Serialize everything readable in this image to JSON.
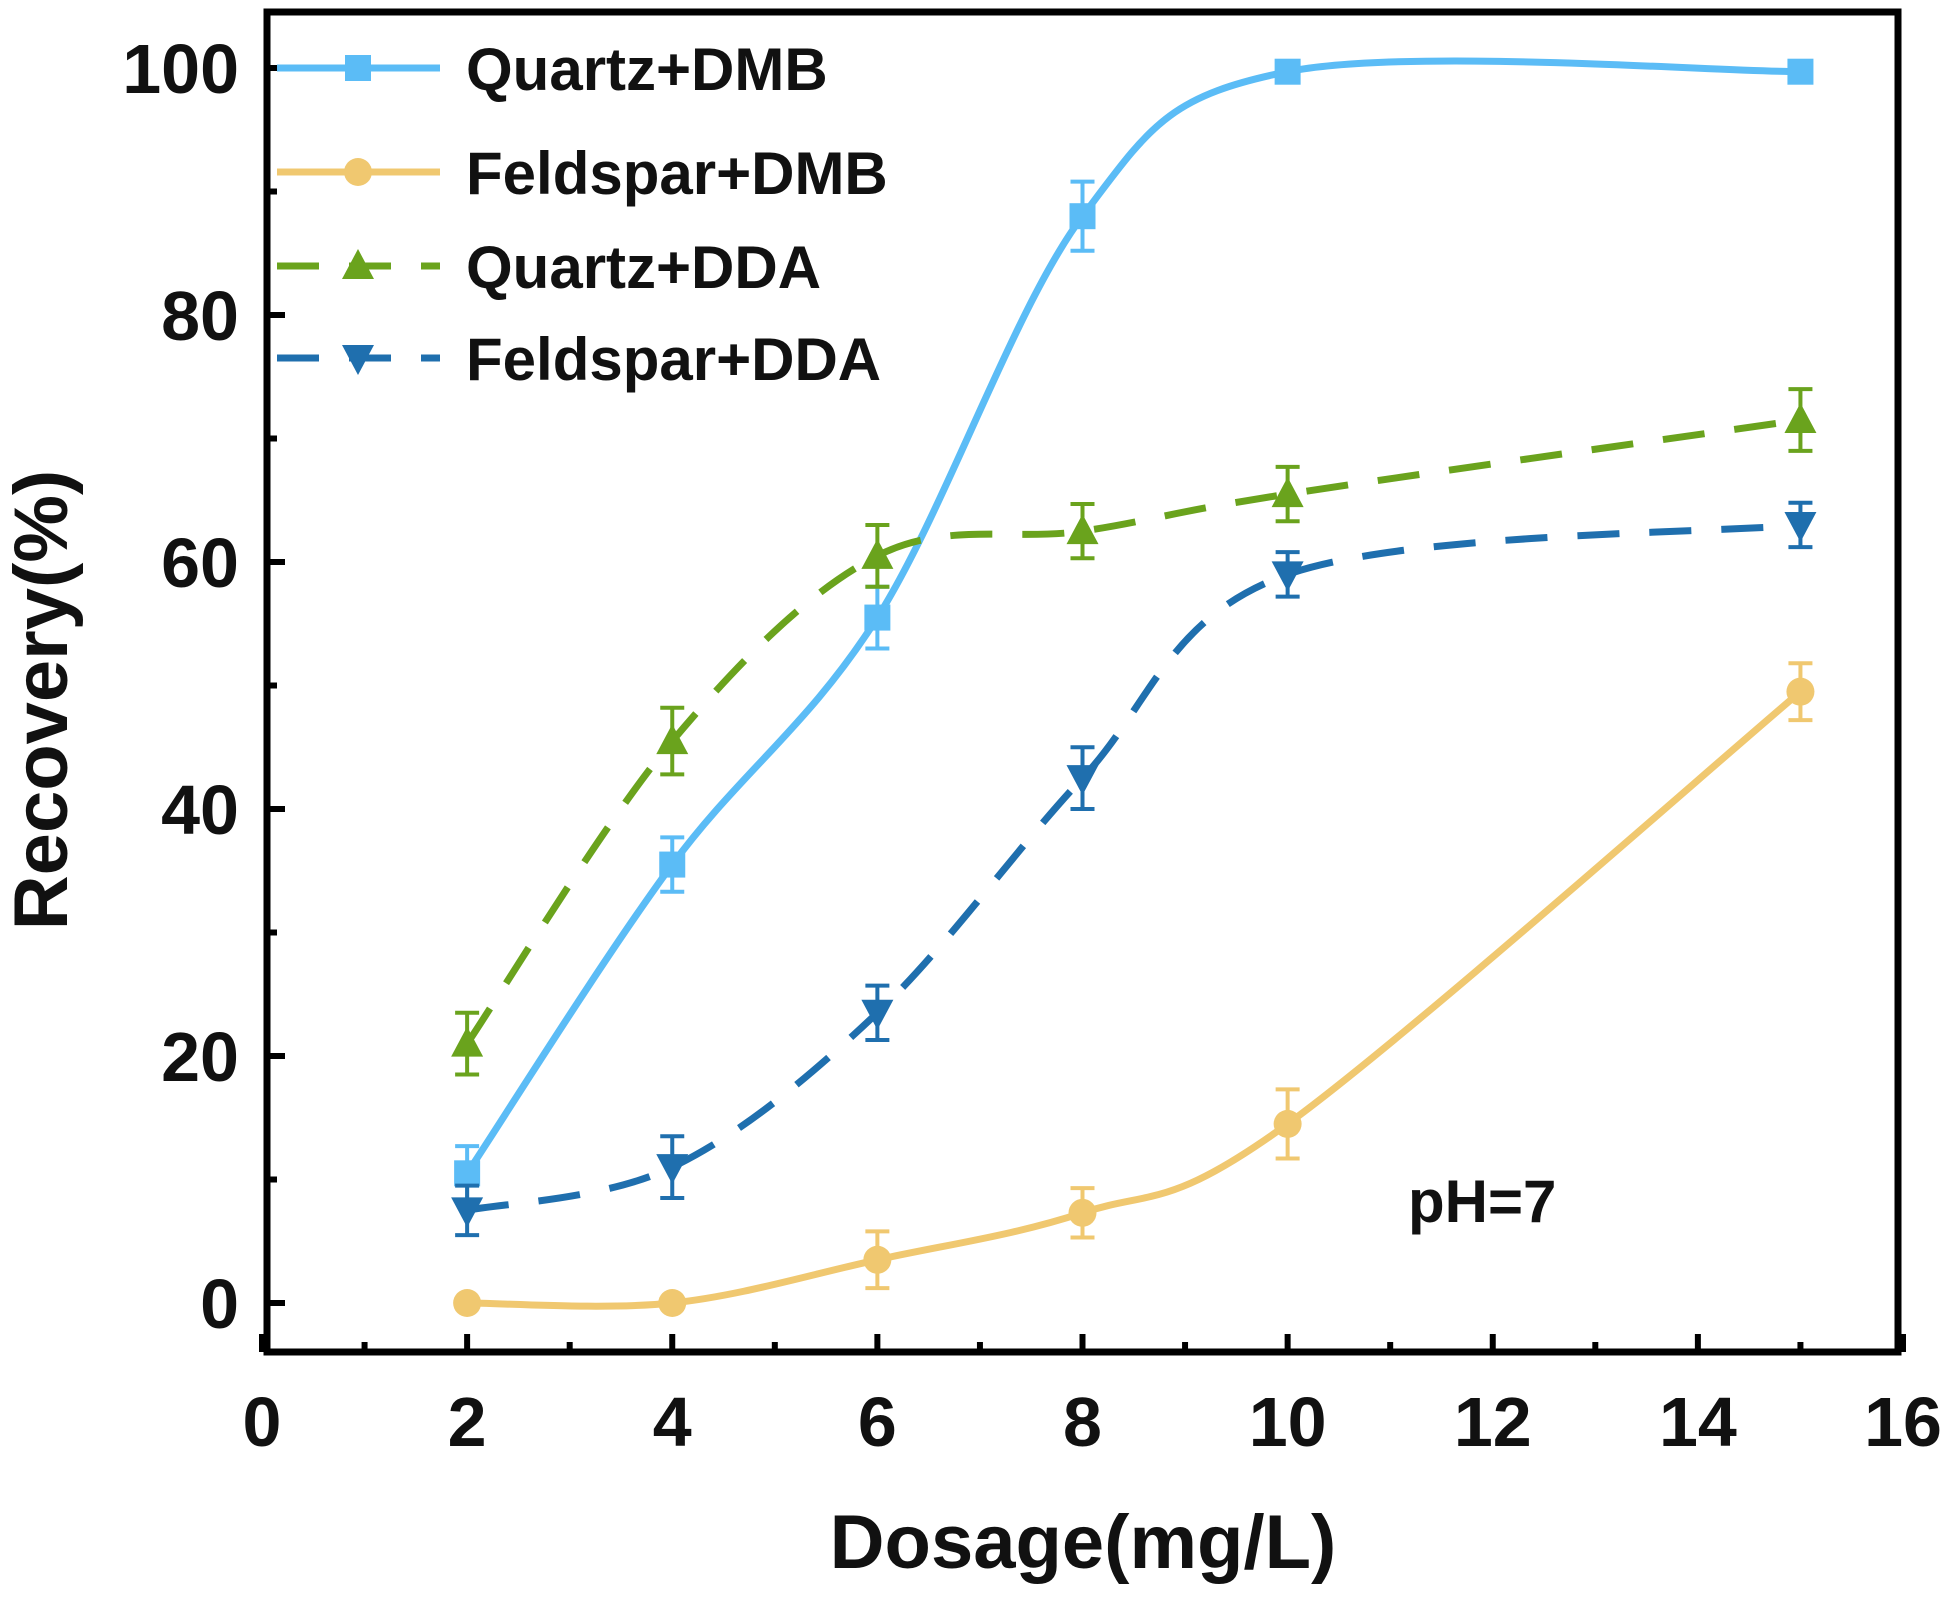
{
  "chart_data": {
    "type": "line",
    "title": "",
    "xlabel": "Dosage(mg/L)",
    "ylabel": "Recovery(%)",
    "xlim": [
      0,
      16
    ],
    "ylim": [
      -4,
      104
    ],
    "xticks": [
      0,
      2,
      4,
      6,
      8,
      10,
      12,
      14,
      16
    ],
    "yticks": [
      0,
      20,
      40,
      60,
      80,
      100
    ],
    "xtick_labels": [
      "0",
      "2",
      "4",
      "6",
      "8",
      "10",
      "12",
      "14",
      "16"
    ],
    "ytick_labels": [
      "0",
      "20",
      "40",
      "60",
      "80",
      "100"
    ],
    "grid": false,
    "legend_position": "top-left",
    "annotation": "pH=7",
    "series": [
      {
        "name": "Quartz+DMB",
        "color": "#5bbcf6",
        "marker": "square",
        "dashed": false,
        "x": [
          2,
          4,
          6,
          8,
          10,
          15
        ],
        "y": [
          10.5,
          35.5,
          55.5,
          88,
          99.7,
          99.7
        ],
        "err": [
          2.2,
          2.2,
          2.5,
          2.8,
          0.6,
          0.4
        ]
      },
      {
        "name": "Feldspar+DMB",
        "color": "#f0c870",
        "marker": "circle",
        "dashed": false,
        "x": [
          2,
          4,
          6,
          8,
          10,
          15
        ],
        "y": [
          0,
          0,
          3.5,
          7.3,
          14.5,
          49.5
        ],
        "err": [
          0.3,
          0.3,
          2.3,
          2.0,
          2.8,
          2.3
        ]
      },
      {
        "name": "Quartz+DDA",
        "color": "#6aa31d",
        "marker": "triangle-up",
        "dashed": true,
        "x": [
          2,
          4,
          6,
          8,
          10,
          15
        ],
        "y": [
          21,
          45.5,
          60.5,
          62.5,
          65.5,
          71.5
        ],
        "err": [
          2.5,
          2.7,
          2.5,
          2.2,
          2.2,
          2.5
        ]
      },
      {
        "name": "Feldspar+DDA",
        "color": "#1f6fae",
        "marker": "triangle-down",
        "dashed": true,
        "x": [
          2,
          4,
          6,
          8,
          10,
          15
        ],
        "y": [
          7.5,
          11,
          23.5,
          42.5,
          59,
          63
        ],
        "err": [
          2.0,
          2.5,
          2.2,
          2.5,
          1.8,
          1.8
        ]
      }
    ]
  }
}
